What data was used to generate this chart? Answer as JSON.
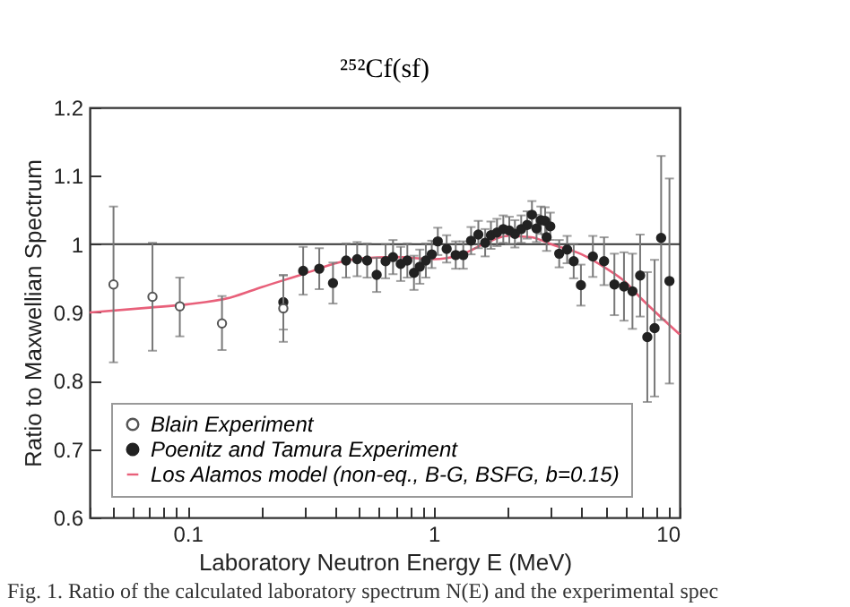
{
  "chart_data": {
    "type": "scatter",
    "title": "²⁵²Cf(sf)",
    "xlabel": "Laboratory Neutron Energy  E  (MeV)",
    "ylabel": "Ratio to Maxwellian Spectrum",
    "annotations": [
      "Fig. 1. Ratio of the calculated laboratory spectrum N(E) and the experimental spec"
    ],
    "log": "x",
    "xlim": [
      0.04,
      10
    ],
    "ylim": [
      0.6,
      1.2
    ],
    "xticks": [
      {
        "value": 0.04,
        "label": null
      },
      {
        "value": 0.05,
        "label": null
      },
      {
        "value": 0.06,
        "label": null
      },
      {
        "value": 0.07,
        "label": null
      },
      {
        "value": 0.08,
        "label": null
      },
      {
        "value": 0.09,
        "label": null
      },
      0.1,
      {
        "value": 0.2,
        "label": null
      },
      {
        "value": 0.3,
        "label": null
      },
      {
        "value": 0.4,
        "label": null
      },
      {
        "value": 0.5,
        "label": null
      },
      {
        "value": 0.6,
        "label": null
      },
      {
        "value": 0.7,
        "label": null
      },
      {
        "value": 0.8,
        "label": null
      },
      {
        "value": 0.9,
        "label": null
      },
      1,
      {
        "value": 2,
        "label": null
      },
      {
        "value": 3,
        "label": null
      },
      {
        "value": 4,
        "label": null
      },
      {
        "value": 5,
        "label": null
      },
      {
        "value": 6,
        "label": null
      },
      {
        "value": 7,
        "label": null
      },
      {
        "value": 8,
        "label": null
      },
      {
        "value": 9,
        "label": null
      },
      10
    ],
    "yticks": [
      0.6,
      0.7,
      0.8,
      0.9,
      1,
      1.1,
      1.2
    ],
    "grid": false,
    "legend": "bottom left",
    "ref_lines": [
      {
        "axis": "y",
        "value": 1,
        "color": "#333333"
      }
    ],
    "series": [
      {
        "name": "Blain Experiment",
        "type": "scatter",
        "marker": "circle",
        "color": "#555555",
        "x": [
          0.05,
          0.072,
          0.093,
          0.138,
          0.245
        ],
        "values": [
          0.941,
          0.923,
          0.909,
          0.884,
          0.906
        ],
        "errors": [
          [
            0.827,
            1.055
          ],
          [
            0.844,
            1.002
          ],
          [
            0.865,
            0.951
          ],
          [
            0.845,
            0.924
          ],
          [
            0.857,
            0.954
          ]
        ]
      },
      {
        "name": "Poenitz and Tamura Experiment",
        "type": "scatter",
        "marker": "circle",
        "color": "#222222",
        "x": [
          0.245,
          0.295,
          0.343,
          0.39,
          0.441,
          0.489,
          0.537,
          0.587,
          0.638,
          0.684,
          0.735,
          0.782,
          0.832,
          0.879,
          0.93,
          0.983,
          1.04,
          1.13,
          1.23,
          1.32,
          1.42,
          1.52,
          1.62,
          1.71,
          1.81,
          1.92,
          2.03,
          2.14,
          2.27,
          2.4,
          2.51,
          2.62,
          2.73,
          2.84,
          2.88,
          2.98,
          3.24,
          3.49,
          3.71,
          3.97,
          4.44,
          4.93,
          5.43,
          5.94,
          6.43,
          6.91,
          7.39,
          7.91,
          8.41,
          9.09
        ],
        "values": [
          0.915,
          0.961,
          0.964,
          0.943,
          0.976,
          0.978,
          0.976,
          0.955,
          0.975,
          0.981,
          0.971,
          0.976,
          0.958,
          0.967,
          0.976,
          0.985,
          1.004,
          0.993,
          0.984,
          0.984,
          1.005,
          1.014,
          1.002,
          1.013,
          1.017,
          1.022,
          1.02,
          1.015,
          1.022,
          1.028,
          1.043,
          1.023,
          1.035,
          1.034,
          1.01,
          1.026,
          0.986,
          0.992,
          0.975,
          0.94,
          0.982,
          0.975,
          0.941,
          0.938,
          0.931,
          0.954,
          0.864,
          0.877,
          1.009,
          0.946
        ],
        "errors": [
          0.04,
          0.035,
          0.03,
          0.03,
          0.025,
          0.025,
          0.025,
          0.025,
          0.025,
          0.025,
          0.025,
          0.025,
          0.025,
          0.025,
          0.025,
          0.02,
          0.02,
          0.02,
          0.02,
          0.02,
          0.02,
          0.02,
          0.02,
          0.02,
          0.02,
          0.02,
          0.02,
          0.02,
          0.02,
          0.02,
          0.02,
          0.02,
          0.02,
          0.02,
          0.02,
          0.02,
          0.02,
          0.02,
          0.025,
          0.03,
          0.03,
          0.035,
          0.045,
          0.05,
          0.055,
          0.06,
          0.095,
          0.1,
          0.12,
          0.15
        ]
      },
      {
        "name": "Los Alamos model (non-eq., B-G, BSFG, b=0.15)",
        "type": "line",
        "color": "#e8607a",
        "marker": "none",
        "line_style": "solid",
        "x": [
          0.04,
          0.07,
          0.1,
          0.15,
          0.2,
          0.3,
          0.4,
          0.5,
          0.7,
          1,
          1.3,
          1.6,
          2,
          2.5,
          3,
          4,
          5,
          6,
          7,
          8,
          10
        ],
        "values": [
          0.9,
          0.907,
          0.912,
          0.922,
          0.937,
          0.957,
          0.972,
          0.979,
          0.981,
          0.978,
          0.985,
          1.0,
          1.012,
          1.01,
          1.0,
          0.985,
          0.965,
          0.945,
          0.92,
          0.9,
          0.868
        ]
      }
    ]
  }
}
